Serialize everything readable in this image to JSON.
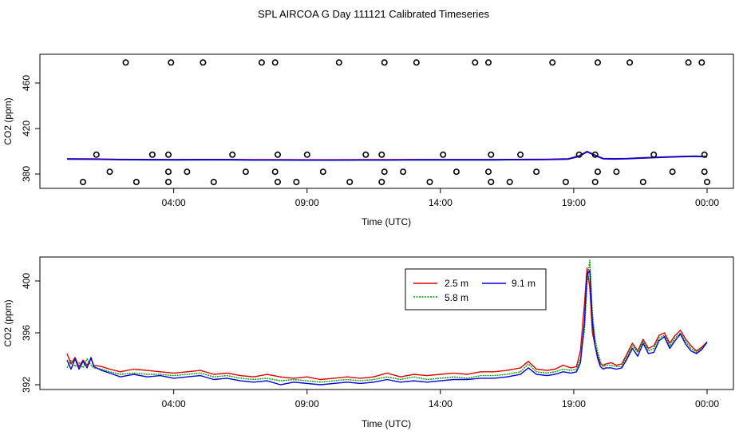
{
  "title": "SPL AIRCOA G  Day 111121  Calibrated Timeseries",
  "colors": {
    "h25": "#dd0000",
    "h58": "#00a000",
    "h91": "#0000dd",
    "axis": "#000000"
  },
  "chart_data": [
    {
      "type": "scatter",
      "name": "calibration-panel",
      "xlabel": "Time (UTC)",
      "ylabel": "CO2 (ppm)",
      "xlim": [
        0,
        26
      ],
      "ylim": [
        370,
        484
      ],
      "xticks": [
        {
          "v": 4,
          "label": "04:00"
        },
        {
          "v": 9,
          "label": "09:00"
        },
        {
          "v": 14,
          "label": "14:00"
        },
        {
          "v": 19,
          "label": "19:00"
        },
        {
          "v": 24,
          "label": "00:00"
        }
      ],
      "yticks": [
        {
          "v": 380,
          "label": "380"
        },
        {
          "v": 420,
          "label": "420"
        },
        {
          "v": 460,
          "label": "460"
        }
      ],
      "standards_ppm": [
        478,
        397,
        382,
        373
      ],
      "points": [
        [
          2.2,
          478
        ],
        [
          3.9,
          478
        ],
        [
          5.1,
          478
        ],
        [
          7.3,
          478
        ],
        [
          7.8,
          478
        ],
        [
          10.2,
          478
        ],
        [
          11.9,
          478
        ],
        [
          13.1,
          478
        ],
        [
          15.3,
          478
        ],
        [
          15.8,
          478
        ],
        [
          18.2,
          478
        ],
        [
          19.9,
          478
        ],
        [
          21.1,
          478
        ],
        [
          23.3,
          478
        ],
        [
          23.8,
          478
        ],
        [
          1.1,
          397
        ],
        [
          3.2,
          397
        ],
        [
          3.8,
          397
        ],
        [
          6.2,
          397
        ],
        [
          7.9,
          397
        ],
        [
          9.0,
          397
        ],
        [
          11.2,
          397
        ],
        [
          11.8,
          397
        ],
        [
          14.1,
          397
        ],
        [
          15.9,
          397
        ],
        [
          17.0,
          397
        ],
        [
          19.2,
          397
        ],
        [
          19.8,
          397
        ],
        [
          22.0,
          397
        ],
        [
          23.9,
          397
        ],
        [
          1.6,
          382
        ],
        [
          3.8,
          382
        ],
        [
          4.5,
          382
        ],
        [
          6.7,
          382
        ],
        [
          7.8,
          382
        ],
        [
          9.6,
          382
        ],
        [
          11.9,
          382
        ],
        [
          12.6,
          382
        ],
        [
          14.6,
          382
        ],
        [
          15.8,
          382
        ],
        [
          17.6,
          382
        ],
        [
          19.9,
          382
        ],
        [
          20.6,
          382
        ],
        [
          22.7,
          382
        ],
        [
          23.9,
          382
        ],
        [
          0.6,
          373
        ],
        [
          2.6,
          373
        ],
        [
          3.8,
          373
        ],
        [
          5.5,
          373
        ],
        [
          7.9,
          373
        ],
        [
          8.6,
          373
        ],
        [
          10.6,
          373
        ],
        [
          11.8,
          373
        ],
        [
          13.6,
          373
        ],
        [
          15.9,
          373
        ],
        [
          16.6,
          373
        ],
        [
          18.7,
          373
        ],
        [
          19.8,
          373
        ],
        [
          21.6,
          373
        ],
        [
          24.0,
          373
        ]
      ],
      "series": [
        {
          "name": "2.5 m",
          "color": "#dd0000",
          "x": [
            0.0,
            1.0,
            2.0,
            3.0,
            4.0,
            5.0,
            6.0,
            7.0,
            8.0,
            9.0,
            10.0,
            11.0,
            12.0,
            13.0,
            14.0,
            15.0,
            16.0,
            17.0,
            18.0,
            18.8,
            19.2,
            19.5,
            19.8,
            20.1,
            20.5,
            21.0,
            21.5,
            22.0,
            22.5,
            23.0,
            23.5,
            24.0
          ],
          "values": [
            393.3,
            393.2,
            392.8,
            392.7,
            392.6,
            392.7,
            392.7,
            392.5,
            392.5,
            392.4,
            392.4,
            392.5,
            392.5,
            392.6,
            392.6,
            392.6,
            392.6,
            392.8,
            392.9,
            393.3,
            396.0,
            399.8,
            396.5,
            393.6,
            393.4,
            393.6,
            394.2,
            394.6,
            395.0,
            395.4,
            395.7,
            395.3
          ]
        },
        {
          "name": "9.1 m",
          "color": "#0000dd",
          "x": [
            0.0,
            1.0,
            2.0,
            3.0,
            4.0,
            5.0,
            6.0,
            7.0,
            8.0,
            9.0,
            10.0,
            11.0,
            12.0,
            13.0,
            14.0,
            15.0,
            16.0,
            17.0,
            18.0,
            18.8,
            19.2,
            19.5,
            19.8,
            20.1,
            20.5,
            21.0,
            21.5,
            22.0,
            22.5,
            23.0,
            23.5,
            24.0
          ],
          "values": [
            393.1,
            393.0,
            392.6,
            392.5,
            392.4,
            392.5,
            392.5,
            392.3,
            392.3,
            392.2,
            392.2,
            392.3,
            392.3,
            392.4,
            392.4,
            392.4,
            392.4,
            392.6,
            392.7,
            393.1,
            395.5,
            399.6,
            396.3,
            393.4,
            393.2,
            393.4,
            394.0,
            394.4,
            394.8,
            395.2,
            395.5,
            395.1
          ]
        }
      ]
    },
    {
      "type": "line",
      "name": "timeseries-panel",
      "xlabel": "Time (UTC)",
      "ylabel": "CO2 (ppm)",
      "xlim": [
        0,
        26
      ],
      "ylim": [
        391.6,
        402.2
      ],
      "xticks": [
        {
          "v": 4,
          "label": "04:00"
        },
        {
          "v": 9,
          "label": "09:00"
        },
        {
          "v": 14,
          "label": "14:00"
        },
        {
          "v": 19,
          "label": "19:00"
        },
        {
          "v": 24,
          "label": "00:00"
        }
      ],
      "yticks": [
        {
          "v": 392,
          "label": "392"
        },
        {
          "v": 396,
          "label": "396"
        },
        {
          "v": 400,
          "label": "400"
        }
      ],
      "legend": {
        "position": "top-center",
        "entries": [
          "2.5 m",
          "5.8 m",
          "9.1 m"
        ]
      },
      "series": [
        {
          "name": "2.5 m",
          "color": "#dd0000",
          "x": [
            0.0,
            0.15,
            0.3,
            0.45,
            0.6,
            0.75,
            0.9,
            1.0,
            1.3,
            1.6,
            2.0,
            2.5,
            3.0,
            3.5,
            4.0,
            4.5,
            5.0,
            5.5,
            6.0,
            6.5,
            7.0,
            7.5,
            8.0,
            8.5,
            9.0,
            9.5,
            10.0,
            10.5,
            11.0,
            11.5,
            12.0,
            12.5,
            13.0,
            13.5,
            14.0,
            14.5,
            15.0,
            15.5,
            16.0,
            16.5,
            17.0,
            17.3,
            17.6,
            18.0,
            18.3,
            18.6,
            18.9,
            19.1,
            19.25,
            19.4,
            19.5,
            19.6,
            19.7,
            19.8,
            19.9,
            20.0,
            20.1,
            20.2,
            20.4,
            20.6,
            20.8,
            21.0,
            21.2,
            21.4,
            21.6,
            21.8,
            22.0,
            22.2,
            22.4,
            22.6,
            22.8,
            23.0,
            23.2,
            23.4,
            23.6,
            23.8,
            24.0
          ],
          "values": [
            394.4,
            393.6,
            394.1,
            393.4,
            393.9,
            393.5,
            394.0,
            393.5,
            393.4,
            393.2,
            393.0,
            393.2,
            393.1,
            393.0,
            392.9,
            393.0,
            393.1,
            392.8,
            392.9,
            392.7,
            392.6,
            392.8,
            392.6,
            392.5,
            392.6,
            392.4,
            392.5,
            392.6,
            392.5,
            392.6,
            392.9,
            392.6,
            392.8,
            392.7,
            392.8,
            392.9,
            392.8,
            393.0,
            393.0,
            393.1,
            393.3,
            393.8,
            393.2,
            393.1,
            393.2,
            393.5,
            393.3,
            393.4,
            394.6,
            398.2,
            401.0,
            399.5,
            396.0,
            395.0,
            394.2,
            393.6,
            393.5,
            393.6,
            393.7,
            393.5,
            393.6,
            394.4,
            395.2,
            394.6,
            395.5,
            394.8,
            395.0,
            395.8,
            396.0,
            395.2,
            395.8,
            396.2,
            395.5,
            395.0,
            394.6,
            394.9,
            395.3
          ]
        },
        {
          "name": "5.8 m",
          "color": "#00a000",
          "x": [
            0.0,
            0.15,
            0.3,
            0.45,
            0.6,
            0.75,
            0.9,
            1.0,
            1.3,
            1.6,
            2.0,
            2.5,
            3.0,
            3.5,
            4.0,
            4.5,
            5.0,
            5.5,
            6.0,
            6.5,
            7.0,
            7.5,
            8.0,
            8.5,
            9.0,
            9.5,
            10.0,
            10.5,
            11.0,
            11.5,
            12.0,
            12.5,
            13.0,
            13.5,
            14.0,
            14.5,
            15.0,
            15.5,
            16.0,
            16.5,
            17.0,
            17.3,
            17.6,
            18.0,
            18.3,
            18.6,
            18.9,
            19.1,
            19.25,
            19.4,
            19.5,
            19.6,
            19.7,
            19.8,
            19.9,
            20.0,
            20.1,
            20.2,
            20.4,
            20.6,
            20.8,
            21.0,
            21.2,
            21.4,
            21.6,
            21.8,
            22.0,
            22.2,
            22.4,
            22.6,
            22.8,
            23.0,
            23.2,
            23.4,
            23.6,
            23.8,
            24.0
          ],
          "values": [
            393.3,
            393.9,
            393.4,
            393.7,
            393.3,
            394.0,
            393.5,
            393.3,
            393.2,
            393.0,
            392.8,
            392.9,
            392.8,
            392.8,
            392.7,
            392.8,
            392.9,
            392.6,
            392.7,
            392.5,
            392.4,
            392.5,
            392.3,
            392.4,
            392.3,
            392.2,
            392.3,
            392.4,
            392.3,
            392.4,
            392.6,
            392.4,
            392.6,
            392.4,
            392.5,
            392.6,
            392.5,
            392.7,
            392.7,
            392.8,
            393.0,
            393.6,
            393.0,
            392.9,
            393.0,
            393.2,
            393.1,
            393.2,
            394.0,
            396.2,
            399.8,
            401.6,
            397.5,
            395.5,
            394.5,
            393.8,
            393.4,
            393.5,
            393.5,
            393.4,
            393.4,
            394.2,
            395.0,
            394.5,
            395.4,
            394.6,
            394.8,
            395.6,
            395.8,
            395.0,
            395.6,
            396.0,
            395.3,
            394.8,
            394.5,
            394.8,
            395.2
          ]
        },
        {
          "name": "9.1 m",
          "color": "#0000dd",
          "x": [
            0.0,
            0.15,
            0.3,
            0.45,
            0.6,
            0.75,
            0.9,
            1.0,
            1.3,
            1.6,
            2.0,
            2.5,
            3.0,
            3.5,
            4.0,
            4.5,
            5.0,
            5.5,
            6.0,
            6.5,
            7.0,
            7.5,
            8.0,
            8.5,
            9.0,
            9.5,
            10.0,
            10.5,
            11.0,
            11.5,
            12.0,
            12.5,
            13.0,
            13.5,
            14.0,
            14.5,
            15.0,
            15.5,
            16.0,
            16.5,
            17.0,
            17.3,
            17.6,
            18.0,
            18.3,
            18.6,
            18.9,
            19.1,
            19.25,
            19.4,
            19.5,
            19.6,
            19.7,
            19.8,
            19.9,
            20.0,
            20.1,
            20.2,
            20.4,
            20.6,
            20.8,
            21.0,
            21.2,
            21.4,
            21.6,
            21.8,
            22.0,
            22.2,
            22.4,
            22.6,
            22.8,
            23.0,
            23.2,
            23.4,
            23.6,
            23.8,
            24.0
          ],
          "values": [
            393.9,
            393.2,
            394.0,
            393.2,
            393.8,
            393.3,
            394.1,
            393.4,
            393.1,
            392.9,
            392.6,
            392.8,
            392.6,
            392.7,
            392.5,
            392.6,
            392.7,
            392.4,
            392.5,
            392.3,
            392.2,
            392.3,
            392.0,
            392.2,
            392.1,
            392.0,
            392.1,
            392.2,
            392.1,
            392.2,
            392.4,
            392.2,
            392.3,
            392.2,
            392.3,
            392.4,
            392.4,
            392.5,
            392.5,
            392.6,
            392.8,
            393.3,
            392.8,
            392.7,
            392.8,
            393.0,
            392.9,
            393.0,
            393.7,
            396.8,
            400.5,
            400.8,
            396.8,
            395.0,
            394.0,
            393.4,
            393.2,
            393.3,
            393.3,
            393.2,
            393.3,
            394.0,
            394.8,
            394.2,
            395.2,
            394.4,
            394.5,
            395.4,
            395.7,
            394.8,
            395.4,
            395.9,
            395.1,
            394.6,
            394.4,
            394.7,
            395.3
          ]
        }
      ]
    }
  ]
}
